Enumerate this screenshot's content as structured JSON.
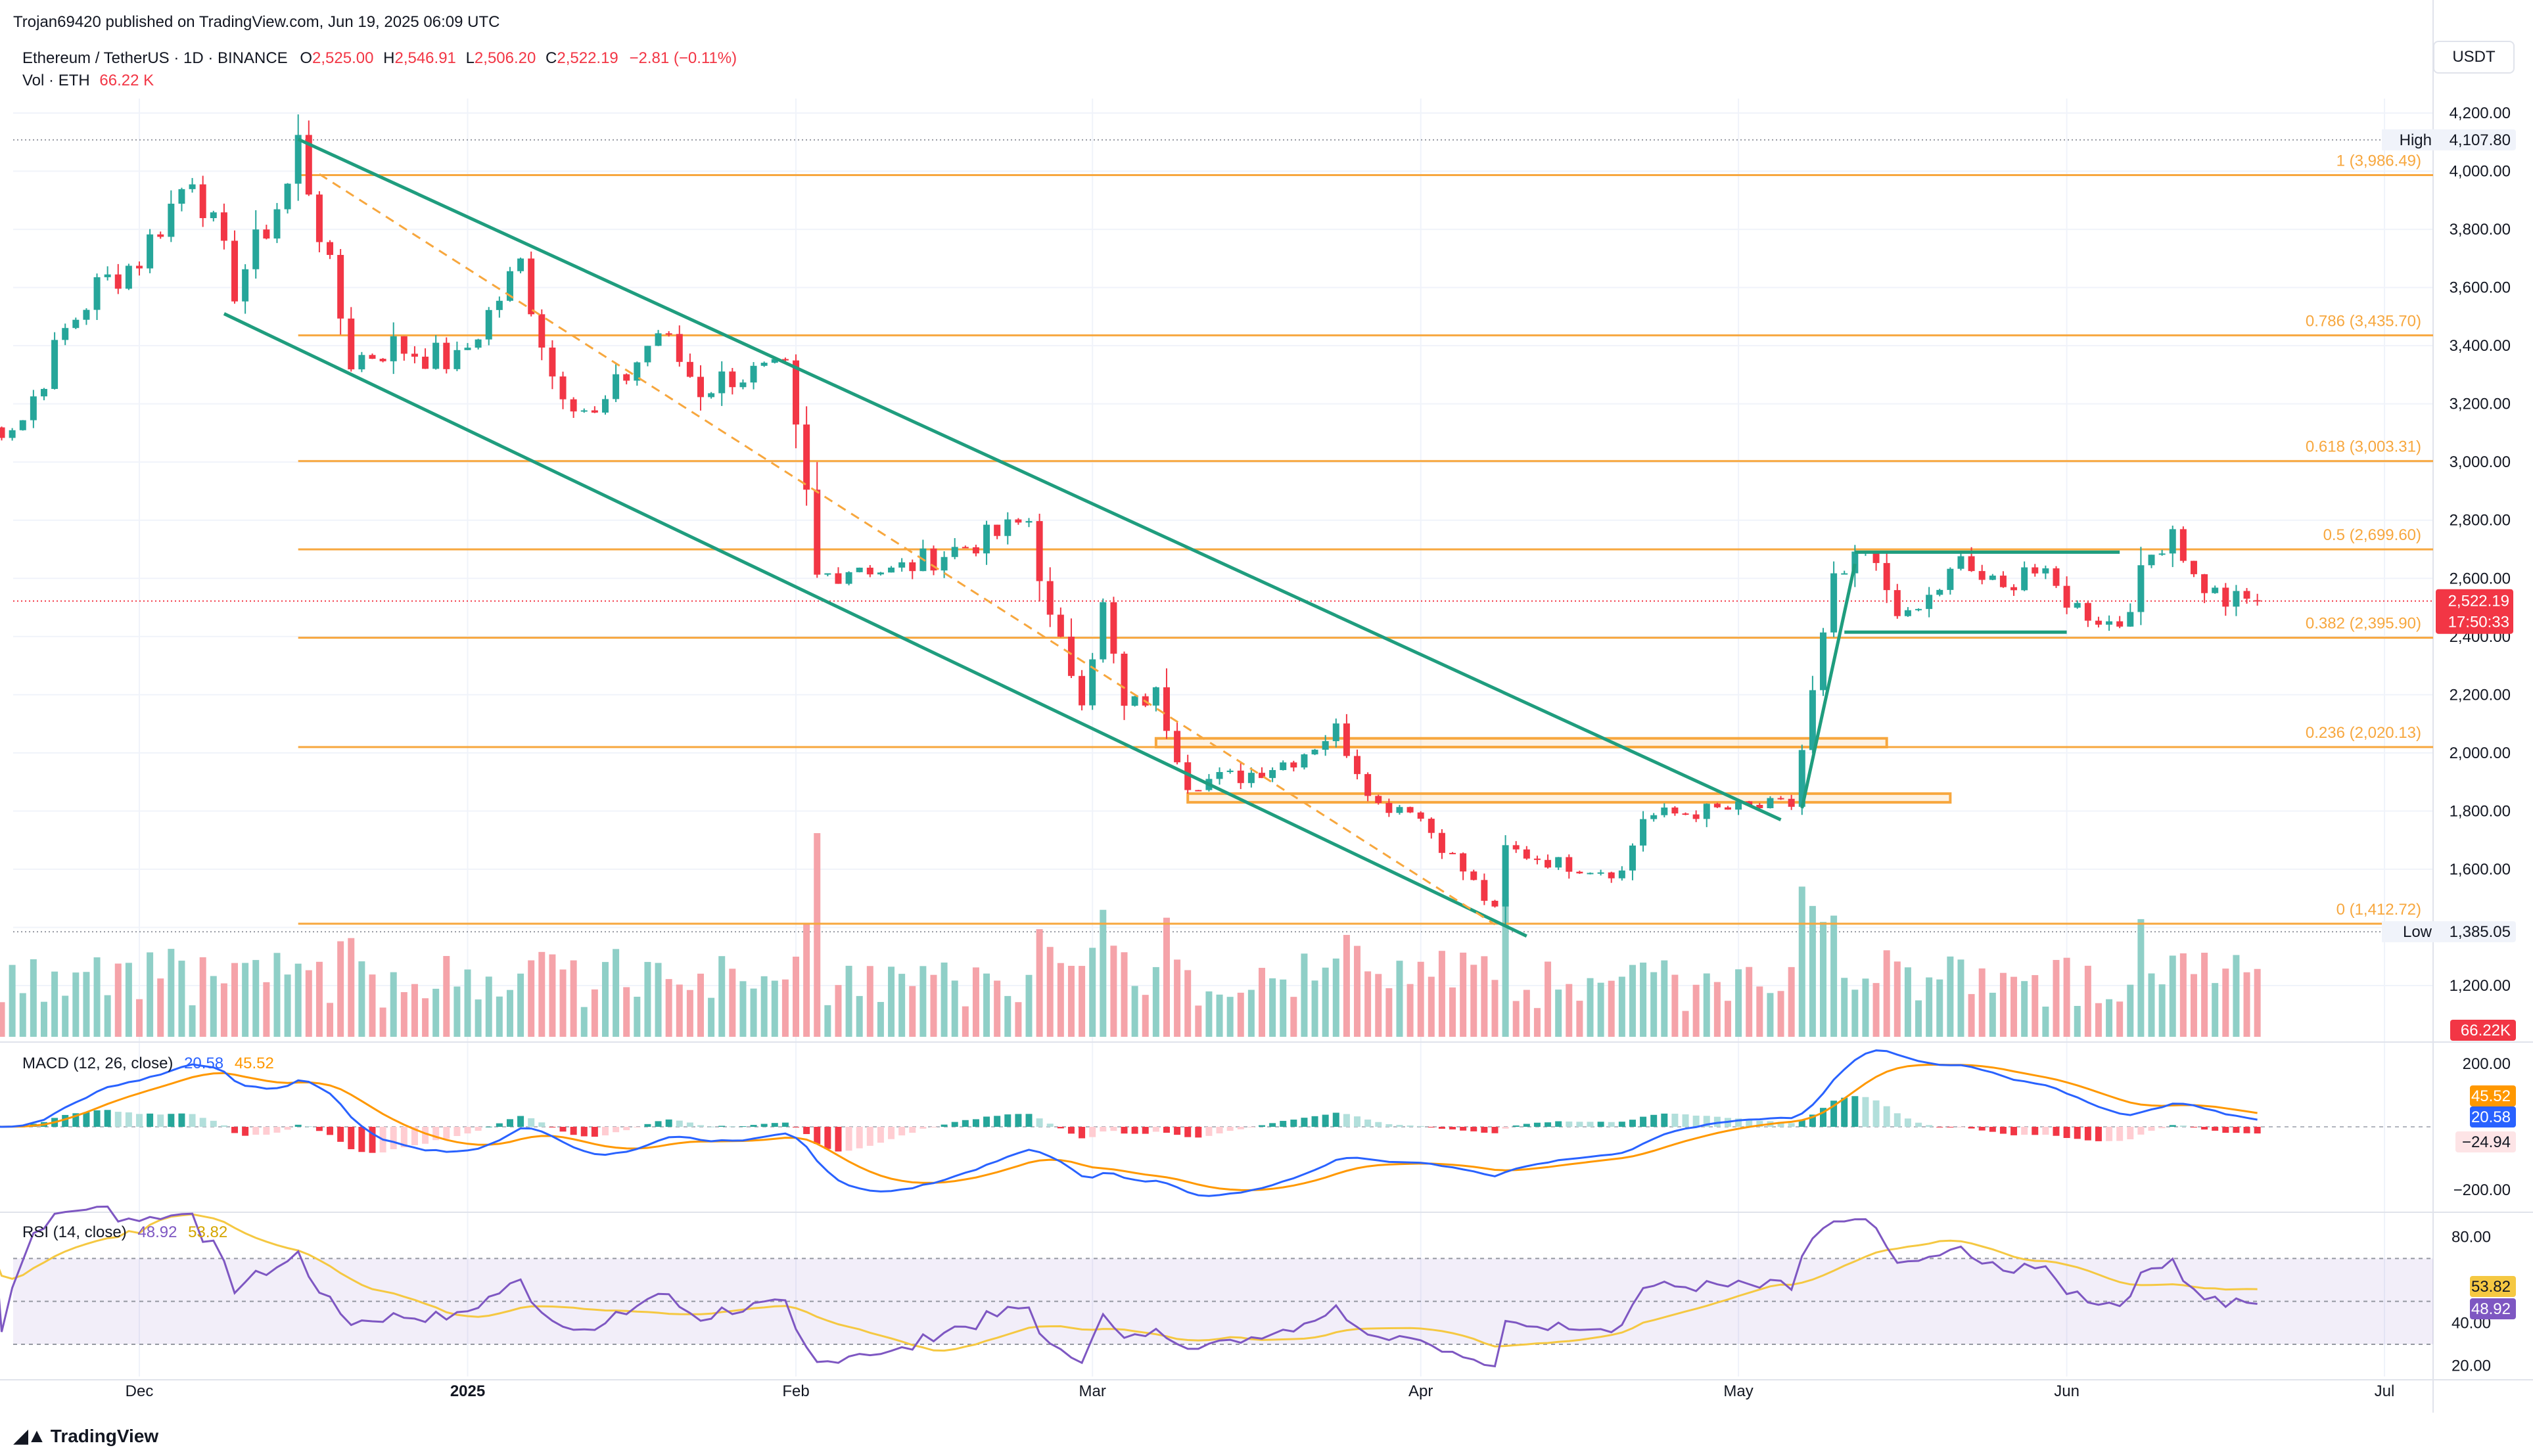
{
  "publish_line": "Trojan69420 published on TradingView.com, Jun 19, 2025 06:09 UTC",
  "symbol_line": {
    "title": "Ethereum / TetherUS · 1D · BINANCE",
    "open_label": "O",
    "open": "2,525.00",
    "high_label": "H",
    "high": "2,546.91",
    "low_label": "L",
    "low": "2,506.20",
    "close_label": "C",
    "close": "2,522.19",
    "change": "−2.81 (−0.11%)"
  },
  "volume_line": {
    "label": "Vol · ETH",
    "value": "66.22 K"
  },
  "currency": "USDT",
  "brand": "TradingView",
  "colors": {
    "up": "#26a69a",
    "down": "#f23645",
    "up_vol": "#8fcfc7",
    "down_vol": "#f5a3a9",
    "fib": "#f7a73e",
    "channel": "#1f9d7e",
    "macd": "#2962ff",
    "signal": "#ff9800",
    "rsi": "#7e57c2",
    "rsi_ma": "#f5c842"
  },
  "chart_data": {
    "type": "candlestick",
    "x_ticks": [
      "Dec",
      "2025",
      "Feb",
      "Mar",
      "Apr",
      "May",
      "Jun",
      "Jul"
    ],
    "x_range": [
      "2024-11-16",
      "2025-07-05"
    ],
    "ylim": [
      1000,
      4300
    ],
    "y_ticks": [
      "4,200.00",
      "4,000.00",
      "3,800.00",
      "3,600.00",
      "3,400.00",
      "3,200.00",
      "3,000.00",
      "2,800.00",
      "2,600.00",
      "2,400.00",
      "2,200.00",
      "2,000.00",
      "1,800.00",
      "1,600.00",
      "1,400.00",
      "1,200.00"
    ],
    "price_markers": {
      "high": {
        "label": "High",
        "value": "4,107.80"
      },
      "low": {
        "label": "Low",
        "value": "1,385.05"
      },
      "last": {
        "value": "2,522.19",
        "countdown": "17:50:33"
      },
      "volume": {
        "value": "66.22K"
      }
    },
    "fib_levels": [
      {
        "label": "1 (3,986.49)",
        "price": 3986.49
      },
      {
        "label": "0.786 (3,435.70)",
        "price": 3435.7
      },
      {
        "label": "0.618 (3,003.31)",
        "price": 3003.31
      },
      {
        "label": "0.5 (2,699.60)",
        "price": 2699.6
      },
      {
        "label": "0.382 (2,395.90)",
        "price": 2395.9
      },
      {
        "label": "0.236 (2,020.13)",
        "price": 2020.13
      },
      {
        "label": "0 (1,412.72)",
        "price": 1412.72
      }
    ],
    "macd": {
      "label": "MACD (12, 26, close)",
      "macd_value": "20.58",
      "signal_value": "45.52",
      "hist_value": "−24.94",
      "ylim": [
        -260,
        260
      ],
      "y_ticks": [
        "200.00",
        "−200.00"
      ]
    },
    "rsi": {
      "label": "RSI (14, close)",
      "rsi_value": "48.92",
      "ma_value": "53.82",
      "ylim": [
        15,
        90
      ],
      "y_ticks": [
        "80.00",
        "40.00",
        "20.00"
      ]
    }
  }
}
